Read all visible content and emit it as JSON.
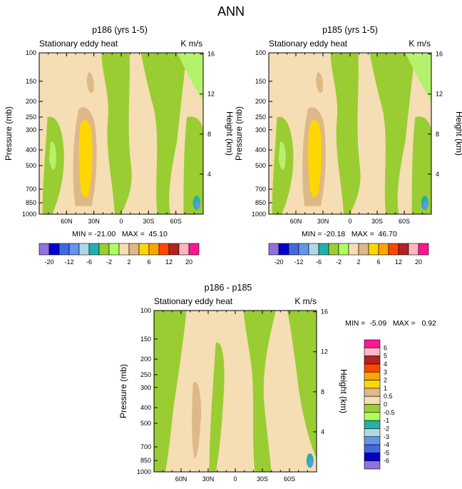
{
  "page": {
    "title": "ANN"
  },
  "colors": {
    "abs_levels": [
      "#9370DB",
      "#0000CD",
      "#4169E1",
      "#6495ED",
      "#ADD8E6",
      "#20B2AA",
      "#9ACD32",
      "#ADFF5F",
      "#F5DEB3",
      "#DEB887",
      "#FFD700",
      "#FFA500",
      "#FF4500",
      "#B22222",
      "#FFB6C1",
      "#FF1493"
    ],
    "diff_levels": [
      "#9370DB",
      "#0000CD",
      "#4169E1",
      "#6495ED",
      "#ADD8E6",
      "#20B2AA",
      "#ADFF5F",
      "#9ACD32",
      "#F5DEB3",
      "#DEB887",
      "#FFD700",
      "#FFA500",
      "#FF4500",
      "#B22222",
      "#FFB6C1",
      "#FF1493"
    ],
    "background_fill": "#F5DEB3",
    "green_dark": "#9ACD32",
    "green_light": "#B5F26B",
    "tan": "#DEB887",
    "yellow": "#FFD700"
  },
  "chart_data": [
    {
      "type": "heatmap",
      "panel": "top-left",
      "title": "p186 (yrs 1-5)",
      "subtitle_left": "Stationary eddy heat",
      "units": "K m/s",
      "xlabel": "",
      "ylabel": "Pressure (mb)",
      "y2label": "Height (km)",
      "x_ticks": [
        "60N",
        "30N",
        "0",
        "30S",
        "60S"
      ],
      "x_tick_lat": [
        60,
        30,
        0,
        -30,
        -60
      ],
      "xlim": [
        90,
        -90
      ],
      "y_ticks": [
        "100",
        "150",
        "200",
        "250",
        "300",
        "400",
        "500",
        "700",
        "850",
        "1000"
      ],
      "y_tick_values": [
        100,
        150,
        200,
        250,
        300,
        400,
        500,
        700,
        850,
        1000
      ],
      "ylim": [
        1000,
        100
      ],
      "y2_ticks": [
        "4",
        "8",
        "12",
        "16"
      ],
      "y2_tick_values": [
        4,
        8,
        12,
        16
      ],
      "stats_label": "MIN = -21.00   MAX =  45.10",
      "min": -21.0,
      "max": 45.1,
      "colorbar_labels": [
        "-20",
        "-12",
        "-6",
        "-2",
        "2",
        "6",
        "12",
        "20"
      ],
      "colorbar_levels": [
        -20,
        -16,
        -12,
        -8,
        -6,
        -4,
        -2,
        -1,
        1,
        2,
        4,
        6,
        8,
        12,
        16,
        20
      ]
    },
    {
      "type": "heatmap",
      "panel": "top-right",
      "title": "p185 (yrs 1-5)",
      "subtitle_left": "Stationary eddy heat",
      "units": "K m/s",
      "xlabel": "",
      "ylabel": "Pressure (mb)",
      "y2label": "Height (km)",
      "x_ticks": [
        "60N",
        "30N",
        "0",
        "30S",
        "60S"
      ],
      "x_tick_lat": [
        60,
        30,
        0,
        -30,
        -60
      ],
      "xlim": [
        90,
        -90
      ],
      "y_ticks": [
        "100",
        "150",
        "200",
        "250",
        "300",
        "400",
        "500",
        "700",
        "850",
        "1000"
      ],
      "y_tick_values": [
        100,
        150,
        200,
        250,
        300,
        400,
        500,
        700,
        850,
        1000
      ],
      "ylim": [
        1000,
        100
      ],
      "y2_ticks": [
        "4",
        "8",
        "12",
        "16"
      ],
      "y2_tick_values": [
        4,
        8,
        12,
        16
      ],
      "stats_label": "MIN = -20.18   MAX =  46.70",
      "min": -20.18,
      "max": 46.7,
      "colorbar_labels": [
        "-20",
        "-12",
        "-6",
        "-2",
        "2",
        "6",
        "12",
        "20"
      ],
      "colorbar_levels": [
        -20,
        -16,
        -12,
        -8,
        -6,
        -4,
        -2,
        -1,
        1,
        2,
        4,
        6,
        8,
        12,
        16,
        20
      ]
    },
    {
      "type": "heatmap",
      "panel": "bottom-center",
      "title": "p186 - p185",
      "subtitle_left": "Stationary eddy heat",
      "units": "K m/s",
      "xlabel": "",
      "ylabel": "Pressure (mb)",
      "y2label": "Height (km)",
      "x_ticks": [
        "60N",
        "30N",
        "0",
        "30S",
        "60S"
      ],
      "x_tick_lat": [
        60,
        30,
        0,
        -30,
        -60
      ],
      "xlim": [
        90,
        -90
      ],
      "y_ticks": [
        "100",
        "150",
        "200",
        "250",
        "300",
        "400",
        "500",
        "700",
        "850",
        "1000"
      ],
      "y_tick_values": [
        100,
        150,
        200,
        250,
        300,
        400,
        500,
        700,
        850,
        1000
      ],
      "ylim": [
        1000,
        100
      ],
      "y2_ticks": [
        "4",
        "8",
        "12",
        "16"
      ],
      "y2_tick_values": [
        4,
        8,
        12,
        16
      ],
      "stats_label": "MIN =  -5.09   MAX =   0.92",
      "min": -5.09,
      "max": 0.92,
      "colorbar_labels": [
        "6",
        "5",
        "4",
        "3",
        "2",
        "1",
        "0.5",
        "0",
        "-0.5",
        "-1",
        "-2",
        "-3",
        "-4",
        "-5",
        "-6"
      ],
      "colorbar_levels": [
        -6,
        -5,
        -4,
        -3,
        -2,
        -1,
        -0.5,
        0,
        0.5,
        1,
        2,
        3,
        4,
        5,
        6
      ]
    }
  ]
}
